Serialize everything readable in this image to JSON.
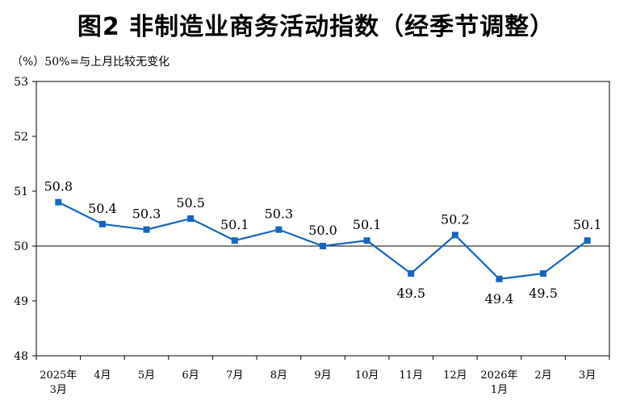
{
  "chart_data": {
    "type": "line",
    "title": "图2  非制造业商务活动指数（经季节调整）",
    "subtitle": "（%）50%=与上月比较无变化",
    "ylim": [
      48,
      53
    ],
    "yticks": [
      "53",
      "52",
      "51",
      "50",
      "49",
      "48"
    ],
    "reference_line": 50,
    "categories": [
      [
        "2025年",
        "3月"
      ],
      [
        "4月"
      ],
      [
        "5月"
      ],
      [
        "6月"
      ],
      [
        "7月"
      ],
      [
        "8月"
      ],
      [
        "9月"
      ],
      [
        "10月"
      ],
      [
        "11月"
      ],
      [
        "12月"
      ],
      [
        "2026年",
        "1月"
      ],
      [
        "2月"
      ],
      [
        "3月"
      ]
    ],
    "values": [
      50.8,
      50.4,
      50.3,
      50.5,
      50.1,
      50.3,
      50.0,
      50.1,
      49.5,
      50.2,
      49.4,
      49.5,
      50.1
    ],
    "labels": [
      "50.8",
      "50.4",
      "50.3",
      "50.5",
      "50.1",
      "50.3",
      "50.0",
      "50.1",
      "49.5",
      "50.2",
      "49.4",
      "49.5",
      "50.1"
    ],
    "label_positions": [
      "above",
      "above",
      "above",
      "above",
      "above",
      "above",
      "above",
      "above",
      "below",
      "above",
      "below",
      "below",
      "above"
    ],
    "series_color": "#1565C0"
  }
}
